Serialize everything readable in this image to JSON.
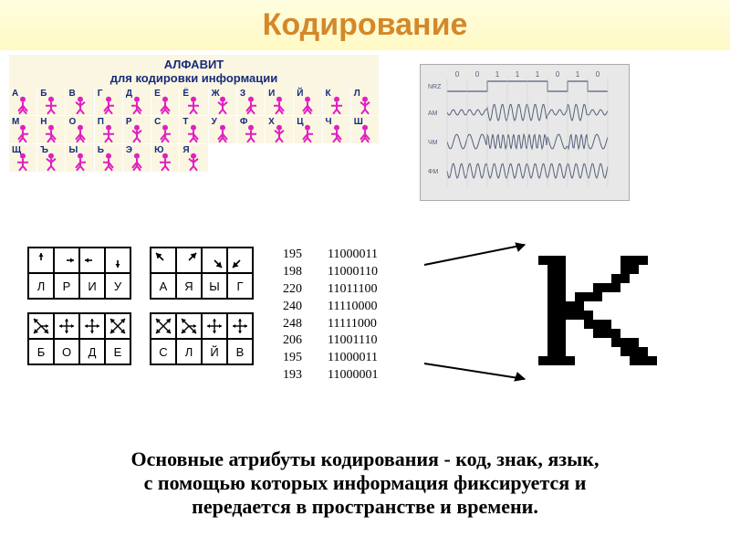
{
  "title": {
    "text": "Кодирование",
    "color": "#d4882a",
    "fontsize": 34
  },
  "alphabet": {
    "heading_line1": "АЛФАВИТ",
    "heading_line2": "для кодировки информации",
    "heading_color": "#162b7a",
    "bg": "#fbf6e2",
    "glyph_color": "#e020c0",
    "letters": [
      "А",
      "Б",
      "В",
      "Г",
      "Д",
      "Е",
      "Ё",
      "Ж",
      "З",
      "И",
      "Й",
      "К",
      "Л",
      "М",
      "Н",
      "О",
      "П",
      "Р",
      "С",
      "Т",
      "У",
      "Ф",
      "Х",
      "Ц",
      "Ч",
      "Ш",
      "Щ",
      "Ъ",
      "Ы",
      "Ь",
      "Э",
      "Ю",
      "Я"
    ],
    "letter_color": "#162b7a"
  },
  "waveforms": {
    "bg": "#e8e8e8",
    "stroke": "#545f7a",
    "bits": [
      "0",
      "0",
      "1",
      "1",
      "1",
      "0",
      "1",
      "0"
    ],
    "row_labels": [
      "NRZ",
      "АМ",
      "ЧМ",
      "ФМ"
    ]
  },
  "arrow_tables": {
    "stroke": "#000",
    "tables": [
      {
        "letters": [
          "Л",
          "Р",
          "И",
          "У"
        ]
      },
      {
        "letters": [
          "А",
          "Я",
          "Ы",
          "Г"
        ]
      },
      {
        "letters": [
          "Б",
          "О",
          "Д",
          "Е"
        ]
      },
      {
        "letters": [
          "С",
          "Л",
          "Й",
          "В"
        ]
      }
    ]
  },
  "binary": {
    "rows": [
      {
        "d": "195",
        "b": "11000011"
      },
      {
        "d": "198",
        "b": "11000110"
      },
      {
        "d": "220",
        "b": "11011100"
      },
      {
        "d": "240",
        "b": "11110000"
      },
      {
        "d": "248",
        "b": "11111000"
      },
      {
        "d": "206",
        "b": "11001110"
      },
      {
        "d": "195",
        "b": "11000011"
      },
      {
        "d": "193",
        "b": "11000001"
      }
    ]
  },
  "pixel_k": {
    "on_color": "#000000",
    "cols": 15,
    "grid": [
      "000000000000000",
      "011100000011100",
      "001100000011000",
      "001100000110000",
      "001100011100000",
      "001101110000000",
      "001111000000000",
      "001111100000000",
      "001100111000000",
      "001100011100000",
      "001100000111000",
      "001100000011100",
      "011110000001110",
      "000000000000000"
    ]
  },
  "bottom": {
    "line1": "Основные атрибуты кодирования - код, знак, язык,",
    "line2": "с помощью которых информация фиксируется и",
    "line3": "передается в пространстве и времени."
  }
}
